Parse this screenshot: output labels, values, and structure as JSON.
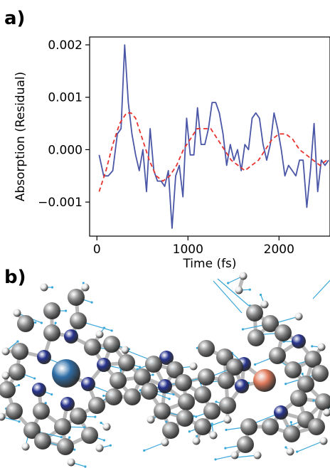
{
  "panels": {
    "a_label": "a)",
    "b_label": "b)"
  },
  "colors": {
    "measured": "#4a56a6",
    "fit": "#e8332e",
    "atom_carbon": "#8c8c8c",
    "atom_hydrogen": "#e8e8e8",
    "atom_nitrogen": "#28348f",
    "metal_left": "#2f6fa8",
    "metal_right": "#e27b5c",
    "vector": "#3aa7d9"
  },
  "chart_data": {
    "type": "line",
    "title": "",
    "xlabel": "Time (fs)",
    "ylabel": "Absorption (Residual)",
    "xlim": [
      -80,
      2560
    ],
    "ylim": [
      -0.00165,
      0.00215
    ],
    "xticks": [
      0,
      1000,
      2000
    ],
    "xtick_labels": [
      "0",
      "1000",
      "2000"
    ],
    "yticks": [
      -0.001,
      0.0,
      0.001,
      0.002
    ],
    "ytick_labels": [
      "−0.001",
      "0.000",
      "0.001",
      "0.002"
    ],
    "grid": false,
    "legend": "none",
    "series": [
      {
        "style": "solid",
        "x": [
          25,
          75,
          125,
          175,
          225,
          265,
          305,
          345,
          385,
          425,
          465,
          505,
          545,
          585,
          625,
          665,
          705,
          745,
          785,
          825,
          865,
          905,
          945,
          985,
          1025,
          1065,
          1105,
          1145,
          1185,
          1225,
          1265,
          1305,
          1345,
          1385,
          1425,
          1465,
          1505,
          1545,
          1585,
          1625,
          1665,
          1705,
          1745,
          1785,
          1825,
          1865,
          1905,
          1945,
          1985,
          2025,
          2065,
          2105,
          2145,
          2185,
          2225,
          2265,
          2305,
          2345,
          2385,
          2425,
          2465,
          2505,
          2545
        ],
        "y": [
          -0.0001,
          -0.0005,
          -0.0005,
          -0.0004,
          0.0003,
          0.0004,
          0.002,
          0.0009,
          0.0003,
          -0.0001,
          -0.0004,
          0.0,
          -0.0008,
          0.0004,
          -0.0004,
          -0.0006,
          -0.0006,
          -0.0007,
          -0.0004,
          -0.0015,
          -0.0005,
          -0.0003,
          -0.0009,
          0.0006,
          -0.0001,
          -0.0001,
          0.0008,
          0.0001,
          0.0001,
          0.0004,
          0.0009,
          0.0009,
          0.0007,
          0.0003,
          -0.0003,
          0.0001,
          -0.0002,
          0.0,
          -0.0004,
          0.0001,
          0.0,
          0.0006,
          0.0007,
          0.0006,
          0.0001,
          -0.0002,
          0.0001,
          0.0007,
          0.0004,
          0.0,
          -0.0005,
          -0.0003,
          -0.0004,
          -0.0005,
          -0.0002,
          -0.0002,
          -0.0011,
          -0.0004,
          0.0005,
          -0.0008,
          -0.0002,
          -0.0003,
          -0.0002
        ]
      },
      {
        "style": "dashed",
        "x": [
          25,
          100,
          175,
          250,
          325,
          375,
          425,
          500,
          575,
          650,
          725,
          800,
          875,
          950,
          1025,
          1100,
          1175,
          1250,
          1325,
          1400,
          1475,
          1550,
          1625,
          1700,
          1775,
          1850,
          1925,
          2000,
          2075,
          2150,
          2225,
          2300,
          2375,
          2450,
          2525
        ],
        "y": [
          -0.0008,
          -0.0004,
          0.0001,
          0.0005,
          0.0007,
          0.0007,
          0.0006,
          0.0002,
          -0.0002,
          -0.0005,
          -0.0006,
          -0.0005,
          -0.0003,
          0.0,
          0.0002,
          0.0004,
          0.0004,
          0.0004,
          0.0002,
          0.0,
          -0.0002,
          -0.0003,
          -0.0004,
          -0.0003,
          -0.0002,
          0.0,
          0.0002,
          0.0003,
          0.0003,
          0.0002,
          0.0,
          -0.0001,
          -0.0002,
          -0.0003,
          -0.0002
        ]
      }
    ]
  }
}
